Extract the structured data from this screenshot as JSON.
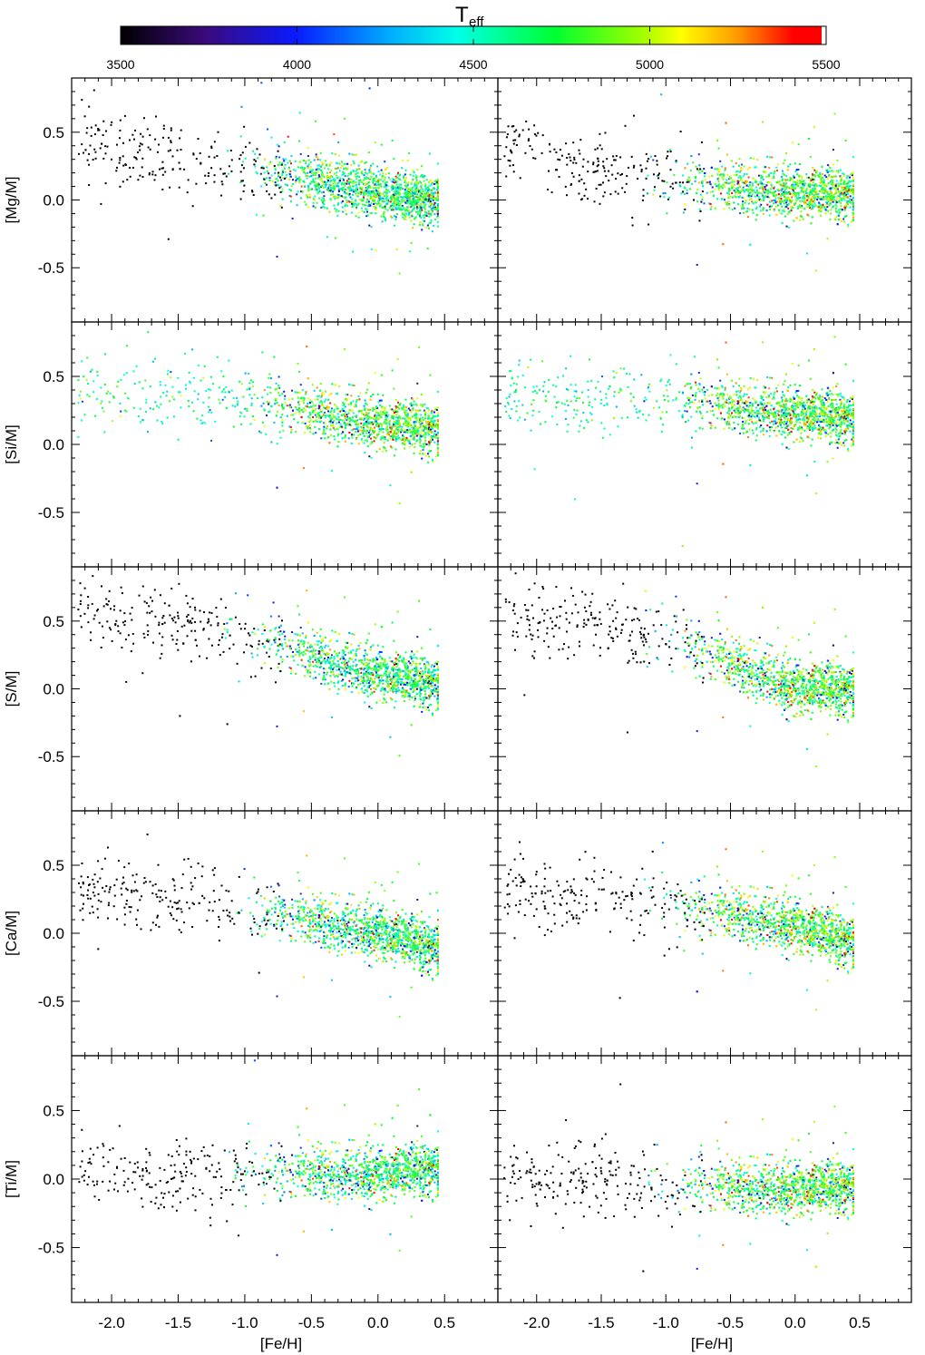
{
  "figure": {
    "colorbar": {
      "label_main": "T",
      "label_sub": "eff",
      "min": 3500,
      "max": 5500,
      "ticks": [
        3500,
        4000,
        4500,
        5000,
        5500
      ],
      "tick_labels": [
        "3500",
        "4000",
        "4500",
        "5000",
        "5500"
      ],
      "colormap": "rainbow"
    },
    "xlabel": "[Fe/H]",
    "ylabels": [
      "[Mg/M]",
      "[Si/M]",
      "[S/M]",
      "[Ca/M]",
      "[Ti/M]"
    ],
    "x_tick_labels": [
      "-2.0",
      "-1.5",
      "-1.0",
      "-0.5",
      "0.0",
      "0.5"
    ],
    "y_tick_labels": [
      "0.5",
      "0.0",
      "-0.5"
    ]
  },
  "chart_data": [
    {
      "type": "scatter",
      "panel": "row1-left",
      "ylabel": "[Mg/M]",
      "xlim": [
        -2.3,
        0.9
      ],
      "ylim": [
        -0.9,
        0.9
      ],
      "trend": {
        "x": [
          -2.2,
          -1.5,
          -1.0,
          -0.5,
          0.0,
          0.4
        ],
        "y": [
          0.45,
          0.3,
          0.22,
          0.15,
          0.05,
          0.0
        ]
      },
      "color_trend": {
        "teff_at_low_feh": 3500,
        "teff_at_high_feh": 4700
      }
    },
    {
      "type": "scatter",
      "panel": "row1-right",
      "ylabel": "[Mg/M]",
      "xlim": [
        -2.3,
        0.9
      ],
      "ylim": [
        -0.9,
        0.9
      ],
      "trend": {
        "x": [
          -2.2,
          -1.5,
          -1.0,
          -0.5,
          0.0,
          0.4
        ],
        "y": [
          0.35,
          0.2,
          0.15,
          0.1,
          0.05,
          0.05
        ]
      },
      "color_trend": {
        "teff_at_low_feh": 3500,
        "teff_at_high_feh": 4800
      }
    },
    {
      "type": "scatter",
      "panel": "row2-left",
      "ylabel": "[Si/M]",
      "xlim": [
        -2.3,
        0.9
      ],
      "ylim": [
        -0.9,
        0.9
      ],
      "trend": {
        "x": [
          -2.2,
          -1.5,
          -1.0,
          -0.5,
          0.0,
          0.4
        ],
        "y": [
          0.38,
          0.34,
          0.32,
          0.25,
          0.15,
          0.12
        ]
      },
      "color_trend": {
        "teff_at_low_feh": 4600,
        "teff_at_high_feh": 4800
      }
    },
    {
      "type": "scatter",
      "panel": "row2-right",
      "ylabel": "[Si/M]",
      "xlim": [
        -2.3,
        0.9
      ],
      "ylim": [
        -0.9,
        0.9
      ],
      "trend": {
        "x": [
          -2.0,
          -1.5,
          -1.0,
          -0.5,
          0.0,
          0.4
        ],
        "y": [
          0.35,
          0.38,
          0.35,
          0.28,
          0.22,
          0.2
        ]
      },
      "color_trend": {
        "teff_at_low_feh": 4600,
        "teff_at_high_feh": 4800
      }
    },
    {
      "type": "scatter",
      "panel": "row3-left",
      "ylabel": "[S/M]",
      "xlim": [
        -2.3,
        0.9
      ],
      "ylim": [
        -0.9,
        0.9
      ],
      "trend": {
        "x": [
          -2.2,
          -1.5,
          -1.0,
          -0.5,
          0.0,
          0.4
        ],
        "y": [
          0.58,
          0.48,
          0.4,
          0.25,
          0.1,
          0.05
        ]
      },
      "color_trend": {
        "teff_at_low_feh": 3500,
        "teff_at_high_feh": 4700
      }
    },
    {
      "type": "scatter",
      "panel": "row3-right",
      "ylabel": "[S/M]",
      "xlim": [
        -2.3,
        0.9
      ],
      "ylim": [
        -0.9,
        0.9
      ],
      "trend": {
        "x": [
          -2.2,
          -1.5,
          -1.0,
          -0.5,
          0.0,
          0.4
        ],
        "y": [
          0.55,
          0.45,
          0.38,
          0.2,
          0.0,
          0.0
        ]
      },
      "color_trend": {
        "teff_at_low_feh": 3500,
        "teff_at_high_feh": 4800
      }
    },
    {
      "type": "scatter",
      "panel": "row4-left",
      "ylabel": "[Ca/M]",
      "xlim": [
        -2.3,
        0.9
      ],
      "ylim": [
        -0.9,
        0.9
      ],
      "trend": {
        "x": [
          -2.2,
          -1.5,
          -1.0,
          -0.5,
          0.0,
          0.4
        ],
        "y": [
          0.35,
          0.25,
          0.18,
          0.1,
          0.0,
          -0.1
        ]
      },
      "color_trend": {
        "teff_at_low_feh": 3500,
        "teff_at_high_feh": 4700
      }
    },
    {
      "type": "scatter",
      "panel": "row4-right",
      "ylabel": "[Ca/M]",
      "xlim": [
        -2.3,
        0.9
      ],
      "ylim": [
        -0.9,
        0.9
      ],
      "trend": {
        "x": [
          -2.2,
          -1.5,
          -1.0,
          -0.5,
          0.0,
          0.4
        ],
        "y": [
          0.3,
          0.25,
          0.2,
          0.15,
          0.05,
          -0.05
        ]
      },
      "color_trend": {
        "teff_at_low_feh": 3500,
        "teff_at_high_feh": 4800
      }
    },
    {
      "type": "scatter",
      "panel": "row5-left",
      "ylabel": "[Ti/M]",
      "xlim": [
        -2.3,
        0.9
      ],
      "ylim": [
        -0.9,
        0.9
      ],
      "trend": {
        "x": [
          -2.2,
          -1.5,
          -1.0,
          -0.5,
          0.0,
          0.4
        ],
        "y": [
          0.05,
          0.0,
          0.05,
          0.05,
          0.03,
          0.08
        ]
      },
      "color_trend": {
        "teff_at_low_feh": 3500,
        "teff_at_high_feh": 4700
      }
    },
    {
      "type": "scatter",
      "panel": "row5-right",
      "ylabel": "[Ti/M]",
      "xlim": [
        -2.3,
        0.9
      ],
      "ylim": [
        -0.9,
        0.9
      ],
      "trend": {
        "x": [
          -2.2,
          -1.5,
          -1.0,
          -0.5,
          0.0,
          0.4
        ],
        "y": [
          0.0,
          0.0,
          -0.05,
          -0.05,
          -0.08,
          -0.05
        ]
      },
      "color_trend": {
        "teff_at_low_feh": 3500,
        "teff_at_high_feh": 4800
      }
    }
  ]
}
